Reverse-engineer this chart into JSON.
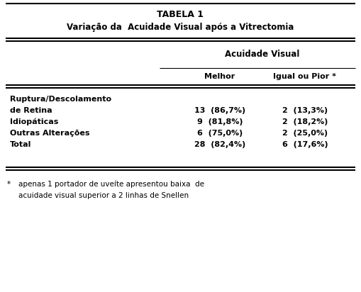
{
  "title": "TABELA 1",
  "subtitle": "Variação da  Acuidade Visual após a Vitrectomia",
  "col_header_main": "Acuidade Visual",
  "col_headers": [
    "Melhor",
    "Igual ou Pior *"
  ],
  "rows": [
    {
      "label_line1": "Ruptura/Descolamento",
      "label_line2": "de Retina",
      "melhor": "13  (86,7%)",
      "pior": "2  (13,3%)"
    },
    {
      "label_line1": "Idiopáticas",
      "label_line2": "",
      "melhor": "9  (81,8%)",
      "pior": "2  (18,2%)"
    },
    {
      "label_line1": "Outras Alterações",
      "label_line2": "",
      "melhor": "6  (75,0%)",
      "pior": "2  (25,0%)"
    },
    {
      "label_line1": "Total",
      "label_line2": "",
      "melhor": "28  (82,4%)",
      "pior": "6  (17,6%)"
    }
  ],
  "footnote_bullet": "*",
  "footnote_line1": "apenas 1 portador de uveíte apresentou baixa  de",
  "footnote_line2": "acuidade visual superior a 2 linhas de Snellen",
  "bg_color": "#ffffff",
  "text_color": "#000000",
  "font_size_title": 9,
  "font_size_body": 8,
  "font_size_foot": 7.5
}
